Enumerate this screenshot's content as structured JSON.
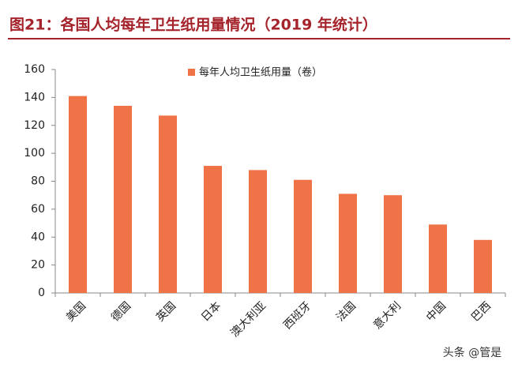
{
  "chart_data": {
    "type": "bar",
    "title": "图21：各国人均每年卫生纸用量情况（2019 年统计）",
    "categories": [
      "美国",
      "德国",
      "英国",
      "日本",
      "澳大利亚",
      "西班牙",
      "法国",
      "意大利",
      "中国",
      "巴西"
    ],
    "series": [
      {
        "name": "每年人均卫生纸用量（卷）",
        "color": "#ef7347",
        "values": [
          141,
          134,
          127,
          91,
          88,
          81,
          71,
          70,
          49,
          38
        ]
      }
    ],
    "ylim": [
      0,
      160
    ],
    "yticks": [
      0,
      20,
      40,
      60,
      80,
      100,
      120,
      140,
      160
    ],
    "grid": false,
    "legend": "top",
    "watermark": "头条 @管是"
  }
}
